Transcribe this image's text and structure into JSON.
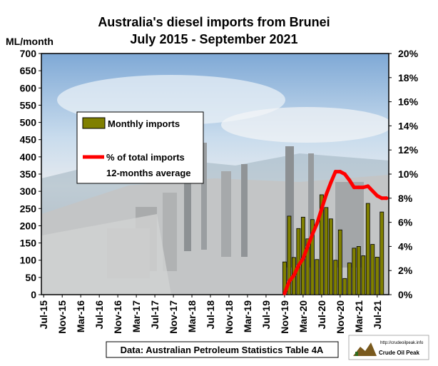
{
  "chart_data": {
    "type": "bar",
    "title": "Australia's diesel imports from Brunei",
    "subtitle": "July 2015 - September 2021",
    "ylabel": "ML/month",
    "ylim": [
      0,
      700
    ],
    "y_ticks": [
      "0",
      "50",
      "100",
      "150",
      "200",
      "250",
      "300",
      "350",
      "400",
      "450",
      "500",
      "550",
      "600",
      "650",
      "700"
    ],
    "y2lim": [
      0,
      20
    ],
    "y2_ticks": [
      "0%",
      "2%",
      "4%",
      "6%",
      "8%",
      "10%",
      "12%",
      "14%",
      "16%",
      "18%",
      "20%"
    ],
    "x_range": [
      "2015-07",
      "2021-09"
    ],
    "x_ticks": [
      "Jul-15",
      "Nov-15",
      "Mar-16",
      "Jul-16",
      "Nov-16",
      "Mar-17",
      "Jul-17",
      "Nov-17",
      "Mar-18",
      "Jul-18",
      "Nov-18",
      "Mar-19",
      "Jul-19",
      "Nov-19",
      "Mar-20",
      "Jul-20",
      "Nov-20",
      "Mar-21",
      "Jul-21"
    ],
    "grid": false,
    "legend_position": "upper-left",
    "colors": {
      "bars": "#808000",
      "line": "#ff0000",
      "border": "#000000"
    },
    "series": [
      {
        "name": "Monthly imports",
        "type": "bar",
        "axis": "left",
        "x": [
          "2019-11",
          "2019-12",
          "2020-01",
          "2020-02",
          "2020-03",
          "2020-04",
          "2020-05",
          "2020-06",
          "2020-07",
          "2020-08",
          "2020-09",
          "2020-10",
          "2020-11",
          "2020-12",
          "2021-01",
          "2021-02",
          "2021-03",
          "2021-04",
          "2021-05",
          "2021-06",
          "2021-07",
          "2021-08",
          "2021-09"
        ],
        "values": [
          95,
          228,
          108,
          192,
          225,
          162,
          218,
          102,
          290,
          253,
          220,
          100,
          188,
          47,
          92,
          135,
          140,
          113,
          265,
          146,
          109,
          240,
          0
        ]
      },
      {
        "name": "% of total imports 12-months average",
        "type": "line",
        "axis": "right",
        "x": [
          "2019-11",
          "2019-12",
          "2020-01",
          "2020-02",
          "2020-03",
          "2020-04",
          "2020-05",
          "2020-06",
          "2020-07",
          "2020-08",
          "2020-09",
          "2020-10",
          "2020-11",
          "2020-12",
          "2021-01",
          "2021-02",
          "2021-03",
          "2021-04",
          "2021-05",
          "2021-06",
          "2021-07",
          "2021-08",
          "2021-09"
        ],
        "values": [
          0.1,
          1.1,
          1.6,
          2.4,
          3.0,
          4.0,
          5.0,
          5.9,
          7.1,
          8.3,
          9.3,
          10.2,
          10.2,
          10.0,
          9.5,
          8.9,
          8.9,
          8.9,
          9.0,
          8.6,
          8.2,
          8.0,
          8.0
        ]
      }
    ],
    "legend": {
      "bar_label": "Monthly imports",
      "line_label_1": "% of total imports",
      "line_label_2": "12-months average"
    },
    "source": "Data: Australian Petroleum Statistics Table 4A",
    "logo": {
      "url_text": "http://crudeoilpeak.info",
      "name": "Crude Oil Peak"
    }
  }
}
